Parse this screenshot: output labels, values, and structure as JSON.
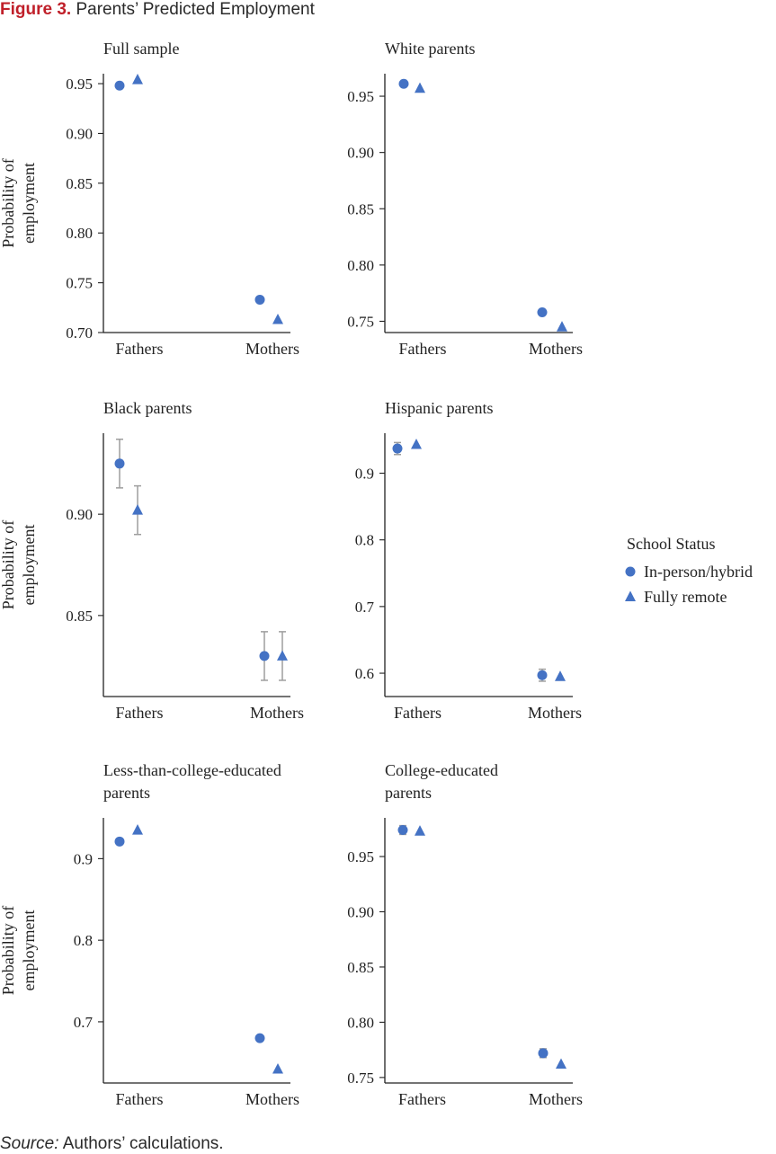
{
  "figure": {
    "label": "Figure 3.",
    "title": "Parents’ Predicted Employment",
    "source_label": "Source:",
    "source_text": " Authors’ calculations."
  },
  "colors": {
    "marker": "#4472c4",
    "errorbar": "#9e9e9e",
    "axis": "#222222"
  },
  "chart_data": [
    {
      "type": "scatter",
      "title": "Full sample",
      "ylabel": [
        "Probability of",
        "employment"
      ],
      "categories": [
        "Fathers",
        "Mothers"
      ],
      "ylim": [
        0.7,
        0.96
      ],
      "yticks": [
        0.7,
        0.75,
        0.8,
        0.85,
        0.9,
        0.95
      ],
      "yticklabels": [
        "0.70",
        "0.75",
        "0.80",
        "0.85",
        "0.90",
        "0.95"
      ],
      "series": [
        {
          "name": "In-person/hybrid",
          "marker": "circle",
          "values": [
            0.948,
            0.733
          ],
          "err": [
            0.002,
            0.003
          ]
        },
        {
          "name": "Fully remote",
          "marker": "triangle",
          "values": [
            0.954,
            0.713
          ],
          "err": [
            0.002,
            0.003
          ]
        }
      ]
    },
    {
      "type": "scatter",
      "title": "White parents",
      "ylabel": [],
      "categories": [
        "Fathers",
        "Mothers"
      ],
      "ylim": [
        0.74,
        0.97
      ],
      "yticks": [
        0.75,
        0.8,
        0.85,
        0.9,
        0.95
      ],
      "yticklabels": [
        "0.75",
        "0.80",
        "0.85",
        "0.90",
        "0.95"
      ],
      "series": [
        {
          "name": "In-person/hybrid",
          "marker": "circle",
          "values": [
            0.961,
            0.758
          ],
          "err": [
            0.002,
            0.003
          ]
        },
        {
          "name": "Fully remote",
          "marker": "triangle",
          "values": [
            0.957,
            0.745
          ],
          "err": [
            0.002,
            0.003
          ]
        }
      ]
    },
    {
      "type": "scatter",
      "title": "Black parents",
      "ylabel": [
        "Probability of",
        "employment"
      ],
      "categories": [
        "Fathers",
        "Mothers"
      ],
      "ylim": [
        0.81,
        0.94
      ],
      "yticks": [
        0.85,
        0.9
      ],
      "yticklabels": [
        "0.85",
        "0.90"
      ],
      "series": [
        {
          "name": "In-person/hybrid",
          "marker": "circle",
          "values": [
            0.925,
            0.83
          ],
          "err": [
            0.012,
            0.012
          ]
        },
        {
          "name": "Fully remote",
          "marker": "triangle",
          "values": [
            0.902,
            0.83
          ],
          "err": [
            0.012,
            0.012
          ]
        }
      ]
    },
    {
      "type": "scatter",
      "title": "Hispanic parents",
      "ylabel": [],
      "categories": [
        "Fathers",
        "Mothers"
      ],
      "ylim": [
        0.565,
        0.96
      ],
      "yticks": [
        0.6,
        0.7,
        0.8,
        0.9
      ],
      "yticklabels": [
        "0.6",
        "0.7",
        "0.8",
        "0.9"
      ],
      "series": [
        {
          "name": "In-person/hybrid",
          "marker": "circle",
          "values": [
            0.937,
            0.597
          ],
          "err": [
            0.009,
            0.009
          ]
        },
        {
          "name": "Fully remote",
          "marker": "triangle",
          "values": [
            0.943,
            0.595
          ],
          "err": [
            0.004,
            0.004
          ]
        }
      ]
    },
    {
      "type": "scatter",
      "title": "Less-than-college-educated parents",
      "title_lines": [
        "Less-than-college-educated",
        "parents"
      ],
      "ylabel": [
        "Probability of",
        "employment"
      ],
      "categories": [
        "Fathers",
        "Mothers"
      ],
      "ylim": [
        0.625,
        0.95
      ],
      "yticks": [
        0.7,
        0.8,
        0.9
      ],
      "yticklabels": [
        "0.7",
        "0.8",
        "0.9"
      ],
      "series": [
        {
          "name": "In-person/hybrid",
          "marker": "circle",
          "values": [
            0.921,
            0.68
          ],
          "err": [
            0.003,
            0.003
          ]
        },
        {
          "name": "Fully remote",
          "marker": "triangle",
          "values": [
            0.935,
            0.642
          ],
          "err": [
            0.003,
            0.003
          ]
        }
      ]
    },
    {
      "type": "scatter",
      "title": "College-educated parents",
      "title_lines": [
        "College-educated",
        "parents"
      ],
      "ylabel": [],
      "categories": [
        "Fathers",
        "Mothers"
      ],
      "ylim": [
        0.745,
        0.985
      ],
      "yticks": [
        0.75,
        0.8,
        0.85,
        0.9,
        0.95
      ],
      "yticklabels": [
        "0.75",
        "0.80",
        "0.85",
        "0.90",
        "0.95"
      ],
      "series": [
        {
          "name": "In-person/hybrid",
          "marker": "circle",
          "values": [
            0.974,
            0.772
          ],
          "err": [
            0.004,
            0.004
          ]
        },
        {
          "name": "Fully remote",
          "marker": "triangle",
          "values": [
            0.973,
            0.762
          ],
          "err": [
            0.002,
            0.002
          ]
        }
      ]
    }
  ],
  "legend": {
    "title": "School Status",
    "items": [
      {
        "label": "In-person/hybrid",
        "marker": "circle"
      },
      {
        "label": "Fully remote",
        "marker": "triangle"
      }
    ]
  }
}
